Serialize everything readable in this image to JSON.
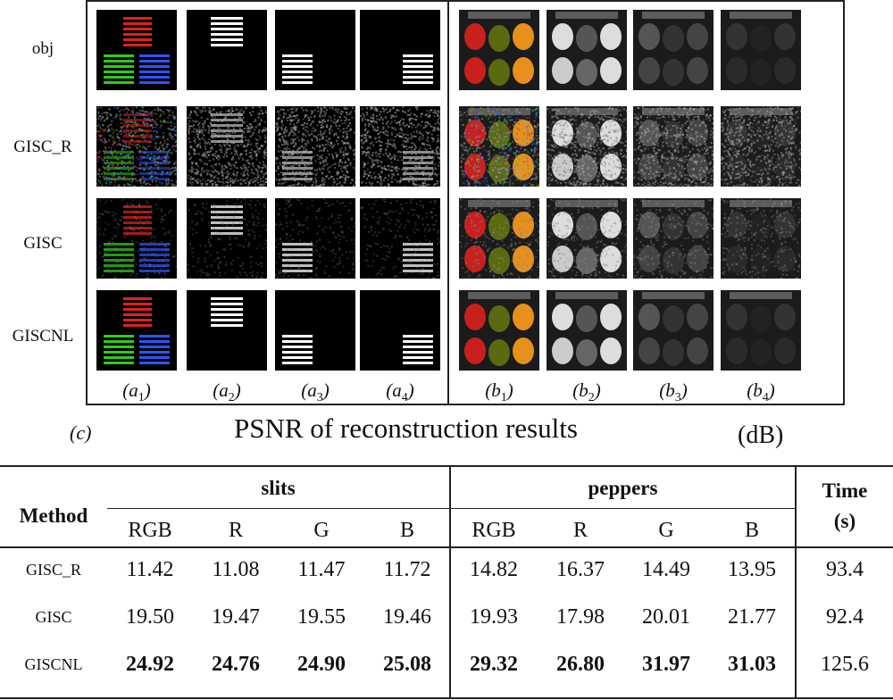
{
  "figure": {
    "rows": [
      "obj",
      "GISC_R",
      "GISC",
      "GISCNL"
    ],
    "columns": [
      {
        "base": "a",
        "sub": "1"
      },
      {
        "base": "a",
        "sub": "2"
      },
      {
        "base": "a",
        "sub": "3"
      },
      {
        "base": "a",
        "sub": "4"
      },
      {
        "base": "b",
        "sub": "1"
      },
      {
        "base": "b",
        "sub": "2"
      },
      {
        "base": "b",
        "sub": "3"
      },
      {
        "base": "b",
        "sub": "4"
      }
    ]
  },
  "caption": {
    "panel": "(c)",
    "title": "PSNR of reconstruction results",
    "unit": "(dB)"
  },
  "table": {
    "method_header": "Method",
    "groups": [
      "slits",
      "peppers"
    ],
    "time_header": [
      "Time",
      "(s)"
    ],
    "subheaders": [
      "RGB",
      "R",
      "G",
      "B",
      "RGB",
      "R",
      "G",
      "B"
    ],
    "rows": [
      {
        "method": "GISC_R",
        "values": [
          "11.42",
          "11.08",
          "11.47",
          "11.72",
          "14.82",
          "16.37",
          "14.49",
          "13.95"
        ],
        "time": "93.4",
        "bold": false
      },
      {
        "method": "GISC",
        "values": [
          "19.50",
          "19.47",
          "19.55",
          "19.46",
          "19.93",
          "17.98",
          "20.01",
          "21.77"
        ],
        "time": "92.4",
        "bold": false
      },
      {
        "method": "GISCNL",
        "values": [
          "24.92",
          "24.76",
          "24.90",
          "25.08",
          "29.32",
          "26.80",
          "31.97",
          "31.03"
        ],
        "time": "125.6",
        "bold": true
      }
    ]
  },
  "colors": {
    "red": "#e02020",
    "green": "#2ecc1a",
    "blue": "#2a55ff",
    "pepper_red": "#c8201c",
    "pepper_green": "#5a6a10",
    "pepper_orange": "#e8901c"
  }
}
